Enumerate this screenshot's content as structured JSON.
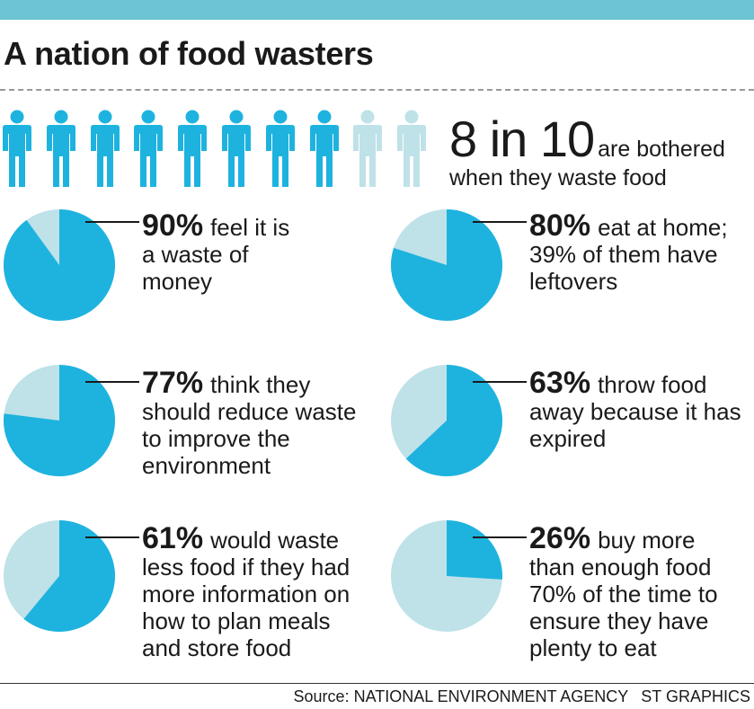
{
  "title": "A nation of food wasters",
  "colors": {
    "dark": "#1eb3df",
    "light": "#bfe1e8",
    "bar": "#6dc4d3"
  },
  "headline": {
    "number": "8 in 10",
    "text_1": "are bothered",
    "text_2": "when they waste food"
  },
  "source": {
    "label": "Source: NATIONAL ENVIRONMENT AGENCY",
    "credit": "ST GRAPHICS"
  },
  "chart_data": {
    "type": "pie",
    "icon_array": {
      "total": 10,
      "highlighted": 8,
      "icon": "person-icon"
    },
    "items": [
      {
        "value": 90,
        "pct_label": "90%",
        "text": "feel it is a waste of money"
      },
      {
        "value": 80,
        "pct_label": "80%",
        "text": "eat at home; 39% of them have leftovers"
      },
      {
        "value": 77,
        "pct_label": "77%",
        "text": "think they should reduce waste to improve the environment"
      },
      {
        "value": 63,
        "pct_label": "63%",
        "text": "throw food away because it has expired"
      },
      {
        "value": 61,
        "pct_label": "61%",
        "text": "would waste less food if they had more information on how to plan meals and store food"
      },
      {
        "value": 26,
        "pct_label": "26%",
        "text": "buy more than enough food 70% of the time to ensure they have plenty to eat"
      }
    ]
  }
}
